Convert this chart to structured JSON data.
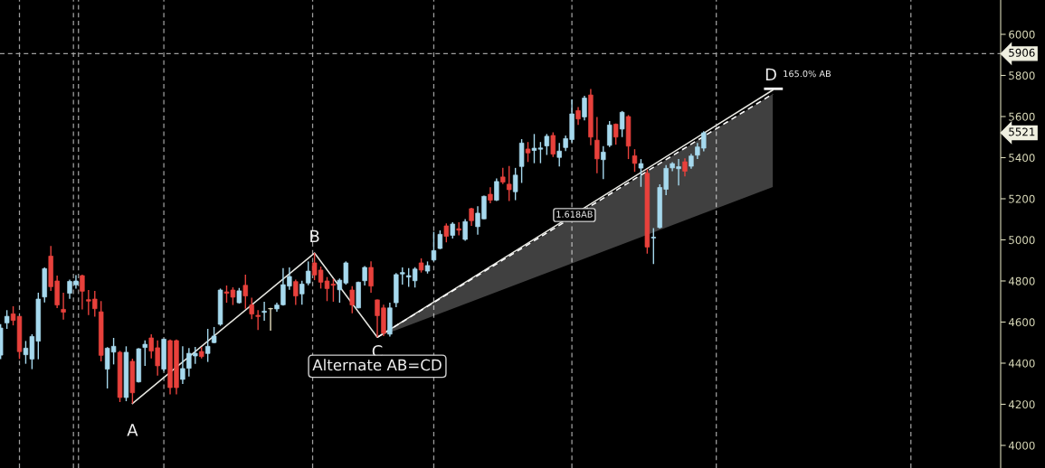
{
  "chart_data": {
    "type": "candlestick",
    "categories": [
      null,
      null,
      null,
      null,
      null,
      null,
      null,
      null,
      null,
      null,
      null,
      null,
      null,
      null,
      null,
      null,
      null,
      null,
      null,
      null,
      null,
      null,
      null,
      null,
      null,
      null,
      null,
      null,
      null,
      null,
      null,
      null,
      null,
      null,
      null,
      null,
      null,
      null,
      null,
      null,
      null,
      null,
      null,
      null,
      null,
      null,
      null,
      null,
      null,
      null,
      null,
      null,
      null,
      null,
      null,
      null,
      null,
      null,
      null,
      null,
      null,
      null,
      null,
      null,
      null,
      null,
      null,
      null,
      null,
      null,
      null,
      null,
      null,
      null,
      null,
      null,
      null,
      null,
      null,
      null,
      null,
      null,
      null,
      null,
      null,
      null,
      null,
      null,
      null,
      null,
      null,
      null,
      null,
      null,
      null,
      null,
      null,
      null,
      null,
      null,
      null,
      null,
      null,
      null,
      null,
      null,
      null,
      null,
      null,
      null,
      null,
      null,
      null,
      null,
      null,
      null,
      null,
      null,
      null,
      null,
      null,
      null,
      null,
      null,
      null,
      null,
      null,
      null,
      null,
      null,
      null,
      null,
      null,
      null,
      null,
      null,
      null,
      null,
      null,
      null,
      null,
      null,
      null,
      null,
      null,
      null,
      null,
      null,
      null,
      null,
      null,
      null,
      null,
      null,
      null,
      null,
      null,
      null,
      null,
      null
    ],
    "ohlc": [
      [
        4439,
        4590,
        4420,
        4571
      ],
      [
        4596,
        4658,
        4567,
        4628
      ],
      [
        4640,
        4677,
        4584,
        4608
      ],
      [
        4628,
        4628,
        4420,
        4456
      ],
      [
        4441,
        4508,
        4397,
        4473
      ],
      [
        4420,
        4541,
        4371,
        4530
      ],
      [
        4507,
        4743,
        4419,
        4712
      ],
      [
        4722,
        4866,
        4696,
        4860
      ],
      [
        4921,
        4970,
        4752,
        4772
      ],
      [
        4800,
        4826,
        4668,
        4683
      ],
      [
        4662,
        4743,
        4612,
        4648
      ],
      [
        4740,
        4807,
        4713,
        4798
      ],
      [
        4781,
        4829,
        4763,
        4800
      ],
      [
        4826,
        4831,
        4661,
        4750
      ],
      [
        4709,
        4756,
        4634,
        4702
      ],
      [
        4712,
        4752,
        4626,
        4665
      ],
      [
        4650,
        4702,
        4409,
        4438
      ],
      [
        4371,
        4478,
        4277,
        4473
      ],
      [
        4454,
        4523,
        4394,
        4482
      ],
      [
        4453,
        4460,
        4211,
        4233
      ],
      [
        4233,
        4482,
        4215,
        4453
      ],
      [
        4409,
        4422,
        4204,
        4256
      ],
      [
        4309,
        4473,
        4306,
        4470
      ],
      [
        4476,
        4511,
        4387,
        4492
      ],
      [
        4523,
        4541,
        4423,
        4459
      ],
      [
        4475,
        4511,
        4340,
        4387
      ],
      [
        4371,
        4520,
        4360,
        4517
      ],
      [
        4510,
        4515,
        4248,
        4281
      ],
      [
        4510,
        4515,
        4248,
        4281
      ],
      [
        4321,
        4482,
        4299,
        4374
      ],
      [
        4375,
        4473,
        4335,
        4448
      ],
      [
        4435,
        4479,
        4397,
        4448
      ],
      [
        4457,
        4479,
        4423,
        4432
      ],
      [
        4447,
        4567,
        4406,
        4482
      ],
      [
        4500,
        4576,
        4497,
        4532
      ],
      [
        4589,
        4763,
        4582,
        4756
      ],
      [
        4747,
        4778,
        4694,
        4740
      ],
      [
        4756,
        4769,
        4683,
        4721
      ],
      [
        4694,
        4766,
        4690,
        4752
      ],
      [
        4779,
        4831,
        4665,
        4727
      ],
      [
        4684,
        4719,
        4614,
        4639
      ],
      [
        4633,
        4658,
        4562,
        4627
      ],
      [
        4647,
        4699,
        4606,
        4653
      ],
      [
        4664,
        4669,
        4558,
        4666
      ],
      [
        4664,
        4694,
        4650,
        4683
      ],
      [
        4684,
        4863,
        4680,
        4782
      ],
      [
        4775,
        4866,
        4757,
        4822
      ],
      [
        4797,
        4807,
        4683,
        4727
      ],
      [
        4737,
        4801,
        4684,
        4785
      ],
      [
        4790,
        4895,
        4779,
        4848
      ],
      [
        4888,
        4936,
        4804,
        4829
      ],
      [
        4853,
        4870,
        4763,
        4794
      ],
      [
        4800,
        4819,
        4702,
        4763
      ],
      [
        4785,
        4810,
        4699,
        4779
      ],
      [
        4757,
        4812,
        4694,
        4804
      ],
      [
        4790,
        4895,
        4782,
        4888
      ],
      [
        4756,
        4775,
        4643,
        4683
      ],
      [
        4669,
        4797,
        4667,
        4794
      ],
      [
        4801,
        4873,
        4778,
        4866
      ],
      [
        4866,
        4895,
        4743,
        4775
      ],
      [
        4708,
        4710,
        4526,
        4631
      ],
      [
        4669,
        4684,
        4532,
        4546
      ],
      [
        4541,
        4694,
        4530,
        4669
      ],
      [
        4694,
        4838,
        4672,
        4831
      ],
      [
        4834,
        4866,
        4782,
        4841
      ],
      [
        4819,
        4863,
        4771,
        4826
      ],
      [
        4801,
        4867,
        4768,
        4858
      ],
      [
        4888,
        4910,
        4841,
        4853
      ],
      [
        4848,
        4895,
        4836,
        4875
      ],
      [
        4902,
        5039,
        4895,
        4948
      ],
      [
        4958,
        5046,
        4955,
        5027
      ],
      [
        5068,
        5080,
        4988,
        5017
      ],
      [
        5022,
        5086,
        5007,
        5077
      ],
      [
        5054,
        5086,
        5022,
        5047
      ],
      [
        5002,
        5101,
        4995,
        5089
      ],
      [
        5152,
        5156,
        5068,
        5093
      ],
      [
        5064,
        5164,
        5025,
        5130
      ],
      [
        5102,
        5215,
        5101,
        5212
      ],
      [
        5222,
        5256,
        5178,
        5193
      ],
      [
        5193,
        5299,
        5189,
        5284
      ],
      [
        5306,
        5350,
        5271,
        5281
      ],
      [
        5271,
        5359,
        5189,
        5244
      ],
      [
        5234,
        5350,
        5193,
        5315
      ],
      [
        5357,
        5490,
        5277,
        5471
      ],
      [
        5442,
        5476,
        5379,
        5423
      ],
      [
        5435,
        5515,
        5373,
        5446
      ],
      [
        5441,
        5476,
        5373,
        5447
      ],
      [
        5457,
        5515,
        5413,
        5504
      ],
      [
        5508,
        5523,
        5403,
        5417
      ],
      [
        5401,
        5471,
        5357,
        5432
      ],
      [
        5449,
        5508,
        5432,
        5493
      ],
      [
        5488,
        5683,
        5474,
        5613
      ],
      [
        5629,
        5646,
        5559,
        5588
      ],
      [
        5598,
        5701,
        5581,
        5690
      ],
      [
        5705,
        5734,
        5460,
        5500
      ],
      [
        5485,
        5598,
        5324,
        5394
      ],
      [
        5390,
        5456,
        5295,
        5427
      ],
      [
        5460,
        5578,
        5452,
        5559
      ],
      [
        5563,
        5566,
        5463,
        5500
      ],
      [
        5539,
        5627,
        5500,
        5621
      ],
      [
        5600,
        5607,
        5393,
        5456
      ],
      [
        5409,
        5441,
        5331,
        5372
      ],
      [
        5349,
        5393,
        5258,
        5371
      ],
      [
        5324,
        5343,
        4933,
        4965
      ],
      [
        5009,
        5057,
        4882,
        5013
      ],
      [
        5060,
        5270,
        5055,
        5255
      ],
      [
        5246,
        5364,
        5217,
        5348
      ],
      [
        5350,
        5378,
        5334,
        5371
      ],
      [
        5346,
        5393,
        5265,
        5356
      ],
      [
        5380,
        5397,
        5309,
        5334
      ],
      [
        5358,
        5419,
        5346,
        5408
      ],
      [
        5412,
        5471,
        5393,
        5452
      ],
      [
        5446,
        5529,
        5431,
        5521
      ],
      null,
      null,
      null,
      null,
      null,
      null,
      null,
      null,
      null,
      null,
      null,
      null,
      null,
      null,
      null,
      null,
      null,
      null,
      null,
      null,
      null,
      null,
      null,
      null,
      null,
      null,
      null,
      null,
      null,
      null,
      null,
      null,
      null,
      null,
      null,
      null,
      null,
      null,
      null,
      null,
      null,
      null,
      null,
      null,
      null,
      null,
      null
    ],
    "colors": [
      "#a6d9ee",
      "#a6d9ee",
      "#e8413c",
      "#e8413c",
      "#a6d9ee",
      "#a6d9ee",
      "#a6d9ee",
      "#a6d9ee",
      "#e8413c",
      "#e8413c",
      "#e8413c",
      "#a6d9ee",
      "#a6d9ee",
      "#e8413c",
      "#e8413c",
      "#e8413c",
      "#e8413c",
      "#a6d9ee",
      "#a6d9ee",
      "#e8413c",
      "#a6d9ee",
      "#e8413c",
      "#a6d9ee",
      "#a6d9ee",
      "#e8413c",
      "#e8413c",
      "#a6d9ee",
      "#e8413c",
      "#e8413c",
      "#a6d9ee",
      "#a6d9ee",
      "#a6d9ee",
      "#e8413c",
      "#a6d9ee",
      "#a6d9ee",
      "#a6d9ee",
      "#e8413c",
      "#e8413c",
      "#a6d9ee",
      "#e8413c",
      "#e8413c",
      "#e8413c",
      "#a6d9ee",
      "#e8e0c0",
      "#a6d9ee",
      "#a6d9ee",
      "#a6d9ee",
      "#e8413c",
      "#a6d9ee",
      "#a6d9ee",
      "#e8413c",
      "#e8413c",
      "#e8413c",
      "#e8413c",
      "#a6d9ee",
      "#a6d9ee",
      "#e8413c",
      "#a6d9ee",
      "#a6d9ee",
      "#e8413c",
      "#e8413c",
      "#e8413c",
      "#a6d9ee",
      "#a6d9ee",
      "#a6d9ee",
      "#a6d9ee",
      "#a6d9ee",
      "#e8413c",
      "#a6d9ee",
      "#a6d9ee",
      "#a6d9ee",
      "#e8413c",
      "#a6d9ee",
      "#e8413c",
      "#a6d9ee",
      "#e8413c",
      "#a6d9ee",
      "#a6d9ee",
      "#e8413c",
      "#a6d9ee",
      "#e8413c",
      "#e8413c",
      "#a6d9ee",
      "#a6d9ee",
      "#e8413c",
      "#a6d9ee",
      "#a6d9ee",
      "#a6d9ee",
      "#e8413c",
      "#a6d9ee",
      "#a6d9ee",
      "#a6d9ee",
      "#e8413c",
      "#a6d9ee",
      "#e8413c",
      "#e8413c",
      "#a6d9ee",
      "#a6d9ee",
      "#e8413c",
      "#a6d9ee",
      "#e8413c",
      "#e8413c",
      "#a6d9ee",
      "#e8413c",
      "#a6d9ee",
      "#a6d9ee",
      "#a6d9ee",
      "#a6d9ee",
      "#a6d9ee",
      "#e8413c",
      "#a6d9ee",
      "#a6d9ee",
      "#a6d9ee",
      null,
      null,
      null,
      null,
      null,
      null,
      null,
      null,
      null,
      null,
      null,
      null,
      null,
      null,
      null,
      null,
      null,
      null,
      null,
      null,
      null,
      null,
      null,
      null,
      null,
      null,
      null,
      null,
      null,
      null,
      null,
      null,
      null,
      null,
      null,
      null,
      null,
      null,
      null,
      null,
      null,
      null,
      null,
      null,
      null,
      null,
      null
    ],
    "series": [
      {
        "type": "line",
        "color": "#ffffff",
        "line_style": "dashed",
        "upper": [
          null,
          null,
          null,
          null,
          null,
          null,
          null,
          null,
          null,
          null,
          null,
          null,
          null,
          null,
          null,
          null,
          null,
          null,
          null,
          null,
          null,
          null,
          null,
          null,
          null,
          null,
          null,
          null,
          null,
          null,
          null,
          null,
          null,
          null,
          null,
          null,
          null,
          null,
          null,
          null,
          null,
          null,
          null,
          null,
          null,
          null,
          null,
          null,
          null,
          null,
          null,
          null,
          null,
          null,
          null,
          null,
          null,
          null,
          null,
          null,
          4526,
          null,
          null,
          null,
          null,
          null,
          null,
          null,
          null,
          null,
          null,
          null,
          null,
          null,
          null,
          null,
          null,
          null,
          null,
          null,
          null,
          null,
          null,
          null,
          null,
          null,
          null,
          null,
          null,
          null,
          null,
          null,
          null,
          null,
          null,
          null,
          null,
          null,
          null,
          null,
          null,
          null,
          null,
          null,
          null,
          null,
          null,
          null,
          null,
          null,
          null,
          null,
          null,
          null,
          null,
          null,
          null,
          null,
          null,
          null,
          null,
          null,
          null,
          5710,
          null,
          null,
          null,
          null,
          null,
          null,
          null,
          null,
          null,
          null,
          null,
          null,
          null,
          null,
          null,
          null,
          null,
          null,
          null,
          null,
          null,
          null,
          null,
          null,
          null,
          null,
          null,
          null,
          null,
          null,
          null,
          null,
          null,
          null,
          null,
          null
        ],
        "values": [
          null,
          null,
          null,
          null,
          null,
          null,
          null,
          null,
          null,
          null,
          null,
          null,
          null,
          null,
          null,
          null,
          null,
          null,
          null,
          null,
          null,
          null,
          null,
          null,
          null,
          null,
          null,
          null,
          null,
          null,
          null,
          null,
          null,
          null,
          null,
          null,
          null,
          null,
          null,
          null,
          null,
          null,
          null,
          null,
          null,
          null,
          null,
          null,
          null,
          null,
          null,
          null,
          null,
          null,
          null,
          null,
          null,
          null,
          null,
          null,
          4526,
          null,
          null,
          null,
          null,
          null,
          null,
          null,
          null,
          null,
          null,
          null,
          null,
          null,
          null,
          null,
          null,
          null,
          null,
          null,
          null,
          null,
          null,
          null,
          null,
          null,
          null,
          null,
          null,
          null,
          null,
          null,
          null,
          null,
          null,
          null,
          null,
          null,
          null,
          null,
          null,
          null,
          null,
          null,
          null,
          null,
          null,
          null,
          null,
          null,
          null,
          null,
          null,
          null,
          null,
          null,
          null,
          null,
          null,
          null,
          null,
          null,
          null,
          5710,
          null,
          null,
          null,
          null,
          null,
          null,
          null,
          null,
          null,
          null,
          null,
          null,
          null,
          null,
          null,
          null,
          null,
          null,
          null,
          null,
          null,
          null,
          null,
          null,
          null,
          null,
          null,
          null,
          null,
          null,
          null,
          null,
          null,
          null,
          null,
          null
        ],
        "lower": [
          null,
          null,
          null,
          null,
          null,
          null,
          null,
          null,
          null,
          null,
          null,
          null,
          null,
          null,
          null,
          null,
          null,
          null,
          null,
          null,
          null,
          null,
          null,
          null,
          null,
          null,
          null,
          null,
          null,
          null,
          null,
          null,
          null,
          null,
          null,
          null,
          null,
          null,
          null,
          null,
          null,
          null,
          null,
          null,
          null,
          null,
          null,
          null,
          null,
          null,
          null,
          null,
          null,
          null,
          null,
          null,
          null,
          null,
          null,
          null,
          4526,
          null,
          null,
          null,
          null,
          null,
          null,
          null,
          null,
          null,
          null,
          null,
          null,
          null,
          null,
          null,
          null,
          null,
          null,
          null,
          null,
          null,
          null,
          null,
          null,
          null,
          null,
          null,
          null,
          null,
          null,
          null,
          null,
          null,
          null,
          null,
          null,
          null,
          null,
          null,
          null,
          null,
          null,
          null,
          null,
          null,
          null,
          null,
          null,
          null,
          null,
          null,
          null,
          null,
          null,
          null,
          null,
          null,
          null,
          null,
          null,
          null,
          null,
          5257,
          null,
          null,
          null,
          null,
          null,
          null,
          null,
          null,
          null,
          null,
          null,
          null,
          null,
          null,
          null,
          null,
          null,
          null,
          null,
          null,
          null,
          null,
          null,
          null,
          null,
          null,
          null,
          null,
          null,
          null,
          null,
          null,
          null,
          null,
          null,
          null
        ]
      },
      {
        "type": "line",
        "color": "#e6e6e0",
        "line_style": "solid",
        "values": [
          null,
          null,
          null,
          null,
          null,
          null,
          null,
          null,
          null,
          null,
          null,
          null,
          null,
          null,
          null,
          null,
          null,
          null,
          null,
          null,
          null,
          4204,
          null,
          null,
          null,
          null,
          null,
          null,
          null,
          null,
          null,
          null,
          null,
          null,
          null,
          null,
          null,
          null,
          null,
          null,
          null,
          null,
          null,
          null,
          null,
          null,
          null,
          null,
          null,
          null,
          4936,
          null,
          null,
          null,
          null,
          null,
          null,
          null,
          null,
          null,
          4526,
          null,
          null,
          null,
          null,
          null,
          null,
          null,
          null,
          null,
          null,
          null,
          null,
          null,
          null,
          null,
          null,
          null,
          null,
          null,
          null,
          null,
          null,
          null,
          null,
          null,
          null,
          null,
          null,
          null,
          null,
          null,
          null,
          null,
          null,
          null,
          null,
          null,
          null,
          null,
          null,
          null,
          null,
          null,
          null,
          null,
          null,
          null,
          null,
          null,
          null,
          null,
          null,
          null,
          null,
          null,
          null,
          null,
          null,
          null,
          null,
          null,
          null,
          5729,
          null,
          null,
          null,
          null,
          null,
          null,
          null,
          null,
          null,
          null,
          null,
          null,
          null,
          null,
          null,
          null,
          null,
          null,
          null,
          null,
          null,
          null,
          null,
          null,
          null,
          null,
          null,
          null,
          null,
          null,
          null,
          null,
          null,
          null,
          null,
          null
        ]
      }
    ],
    "ylim": [
      3890,
      6167
    ],
    "yticks": [
      4000,
      4200,
      4400,
      4600,
      4800,
      5000,
      5200,
      5400,
      5600,
      5800,
      6000
    ],
    "ref_lines": [
      {
        "axis": "y",
        "value": 5906,
        "label": "5906",
        "color": "#a0a0a0",
        "line_style": "dashed"
      }
    ],
    "annotations": [
      {
        "text": "A",
        "y": 4204
      },
      {
        "text": "B",
        "y": 4936
      },
      {
        "text": "C",
        "y": 4526
      },
      {
        "text": "D",
        "y": 5729
      },
      "165.0% AB",
      {
        "text": "1.618AB",
        "y": 5121
      },
      "Alternate AB=CD",
      "5521"
    ],
    "tick_labels": "y",
    "grid": false,
    "legend": false
  }
}
